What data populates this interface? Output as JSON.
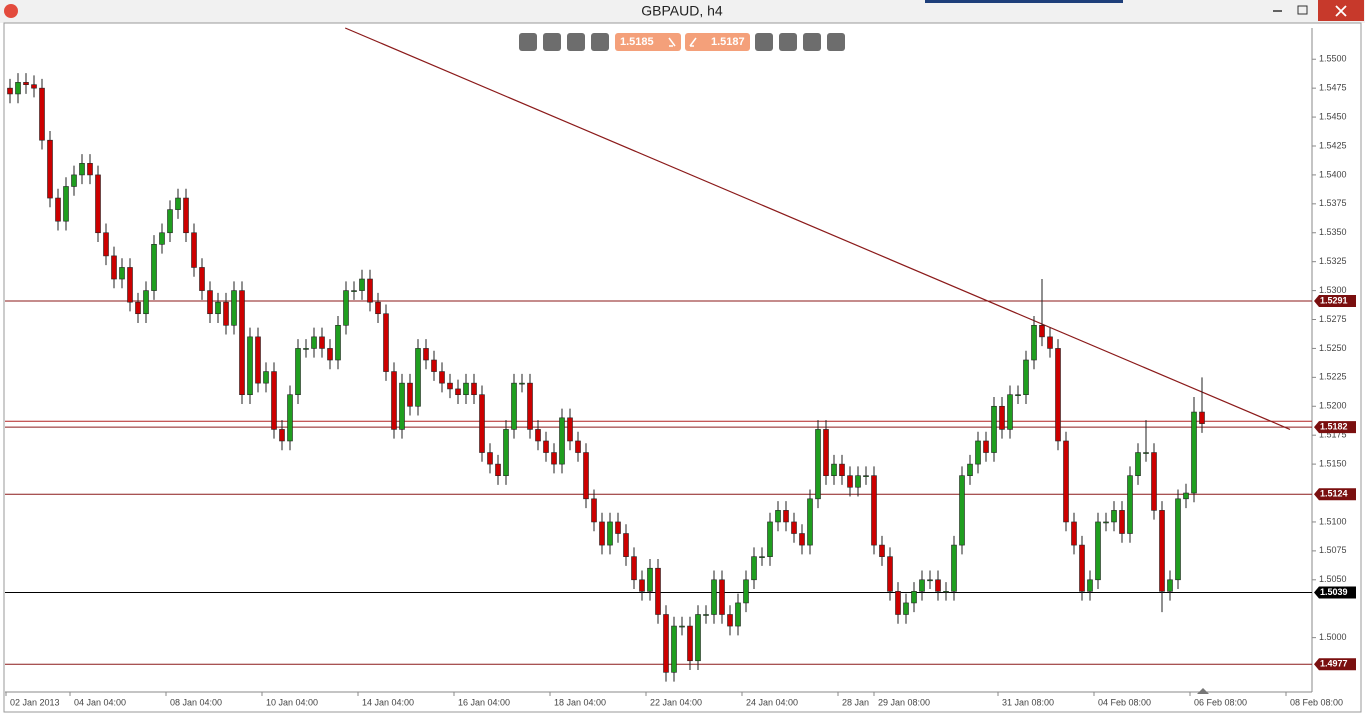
{
  "window": {
    "title": "GBPAUD, h4"
  },
  "toolbar": {
    "bid": 1.5185,
    "ask": 1.5187
  },
  "chart_data": {
    "type": "candlestick",
    "up_color": "#1f9e1f",
    "down_color": "#cc0000",
    "xlim": [
      -0.625,
      162.75
    ],
    "ylim": [
      1.4953,
      1.5527
    ],
    "yticks": [
      {
        "value": 1.55,
        "label": "1.5500"
      },
      {
        "value": 1.5475,
        "label": "1.5475"
      },
      {
        "value": 1.545,
        "label": "1.5450"
      },
      {
        "value": 1.5425,
        "label": "1.5425"
      },
      {
        "value": 1.54,
        "label": "1.5400"
      },
      {
        "value": 1.5375,
        "label": "1.5375"
      },
      {
        "value": 1.535,
        "label": "1.5350"
      },
      {
        "value": 1.5325,
        "label": "1.5325"
      },
      {
        "value": 1.53,
        "label": "1.5300"
      },
      {
        "value": 1.5275,
        "label": "1.5275"
      },
      {
        "value": 1.525,
        "label": "1.5250"
      },
      {
        "value": 1.5225,
        "label": "1.5225"
      },
      {
        "value": 1.52,
        "label": "1.5200"
      },
      {
        "value": 1.5175,
        "label": "1.5175"
      },
      {
        "value": 1.515,
        "label": "1.5150"
      },
      {
        "value": 1.51,
        "label": "1.5100"
      },
      {
        "value": 1.5075,
        "label": "1.5075"
      },
      {
        "value": 1.505,
        "label": "1.5050"
      },
      {
        "value": 1.5,
        "label": "1.5000"
      }
    ],
    "xticks": [
      {
        "value": 0,
        "label": "02 Jan 2013"
      },
      {
        "value": 8,
        "label": "04 Jan 04:00"
      },
      {
        "value": 20,
        "label": "08 Jan 04:00"
      },
      {
        "value": 32,
        "label": "10 Jan 04:00"
      },
      {
        "value": 44,
        "label": "14 Jan 04:00"
      },
      {
        "value": 56,
        "label": "16 Jan 04:00"
      },
      {
        "value": 68,
        "label": "18 Jan 04:00"
      },
      {
        "value": 80,
        "label": "22 Jan 04:00"
      },
      {
        "value": 92,
        "label": "24 Jan 04:00"
      },
      {
        "value": 104,
        "label": "28 Jan"
      },
      {
        "value": 108.5,
        "label": "29 Jan 08:00"
      },
      {
        "value": 124,
        "label": "31 Jan 08:00"
      },
      {
        "value": 136,
        "label": "04 Feb 08:00"
      },
      {
        "value": 148,
        "label": "06 Feb 08:00"
      },
      {
        "value": 160,
        "label": "08 Feb 08:00"
      }
    ],
    "levels": [
      {
        "value": 1.5291,
        "color": "#8b1a1a",
        "show_label": true
      },
      {
        "value": 1.5187,
        "color": "#b22222",
        "show_label": false
      },
      {
        "value": 1.5182,
        "color": "#8b1a1a",
        "show_label": true
      },
      {
        "value": 1.5124,
        "color": "#8b1a1a",
        "show_label": true
      },
      {
        "value": 1.5039,
        "color": "#000000",
        "show_label": true
      },
      {
        "value": 1.4977,
        "color": "#8b1a1a",
        "show_label": true
      }
    ],
    "trendline": {
      "start": [
        41.9,
        1.5527
      ],
      "end": [
        160,
        1.518
      ],
      "color": "#8b1a1a"
    },
    "ohlc": [
      [
        1.5475,
        1.5483,
        1.5462,
        1.547
      ],
      [
        1.547,
        1.5488,
        1.5462,
        1.548
      ],
      [
        1.548,
        1.5488,
        1.547,
        1.5478
      ],
      [
        1.5478,
        1.5486,
        1.5467,
        1.5475
      ],
      [
        1.5475,
        1.5483,
        1.5422,
        1.543
      ],
      [
        1.543,
        1.5438,
        1.5372,
        1.538
      ],
      [
        1.538,
        1.5388,
        1.5352,
        1.536
      ],
      [
        1.536,
        1.5398,
        1.5352,
        1.539
      ],
      [
        1.539,
        1.5408,
        1.5382,
        1.54
      ],
      [
        1.54,
        1.5418,
        1.5392,
        1.541
      ],
      [
        1.541,
        1.5418,
        1.5392,
        1.54
      ],
      [
        1.54,
        1.5408,
        1.5342,
        1.535
      ],
      [
        1.535,
        1.5358,
        1.5322,
        1.533
      ],
      [
        1.533,
        1.5338,
        1.5302,
        1.531
      ],
      [
        1.531,
        1.5328,
        1.5302,
        1.532
      ],
      [
        1.532,
        1.5328,
        1.5282,
        1.529
      ],
      [
        1.529,
        1.5298,
        1.5272,
        1.528
      ],
      [
        1.528,
        1.5308,
        1.5272,
        1.53
      ],
      [
        1.53,
        1.5348,
        1.5292,
        1.534
      ],
      [
        1.534,
        1.5358,
        1.5332,
        1.535
      ],
      [
        1.535,
        1.5378,
        1.5342,
        1.537
      ],
      [
        1.537,
        1.5388,
        1.5362,
        1.538
      ],
      [
        1.538,
        1.5388,
        1.5342,
        1.535
      ],
      [
        1.535,
        1.5358,
        1.5312,
        1.532
      ],
      [
        1.532,
        1.5328,
        1.5292,
        1.53
      ],
      [
        1.53,
        1.5308,
        1.5272,
        1.528
      ],
      [
        1.528,
        1.5298,
        1.5272,
        1.529
      ],
      [
        1.529,
        1.5298,
        1.5262,
        1.527
      ],
      [
        1.527,
        1.5308,
        1.5262,
        1.53
      ],
      [
        1.53,
        1.5308,
        1.5202,
        1.521
      ],
      [
        1.521,
        1.5268,
        1.5202,
        1.526
      ],
      [
        1.526,
        1.5268,
        1.5212,
        1.522
      ],
      [
        1.522,
        1.5238,
        1.5212,
        1.523
      ],
      [
        1.523,
        1.5238,
        1.5172,
        1.518
      ],
      [
        1.518,
        1.5188,
        1.5162,
        1.517
      ],
      [
        1.517,
        1.5218,
        1.5162,
        1.521
      ],
      [
        1.521,
        1.5258,
        1.5202,
        1.525
      ],
      [
        1.525,
        1.5258,
        1.5242,
        1.525
      ],
      [
        1.525,
        1.5268,
        1.5242,
        1.526
      ],
      [
        1.526,
        1.5268,
        1.5242,
        1.525
      ],
      [
        1.525,
        1.5258,
        1.5232,
        1.524
      ],
      [
        1.524,
        1.5278,
        1.5232,
        1.527
      ],
      [
        1.527,
        1.5308,
        1.5262,
        1.53
      ],
      [
        1.53,
        1.5308,
        1.5292,
        1.53
      ],
      [
        1.53,
        1.5318,
        1.5292,
        1.531
      ],
      [
        1.531,
        1.5318,
        1.5282,
        1.529
      ],
      [
        1.529,
        1.5298,
        1.5272,
        1.528
      ],
      [
        1.528,
        1.5288,
        1.5222,
        1.523
      ],
      [
        1.523,
        1.5238,
        1.5172,
        1.518
      ],
      [
        1.518,
        1.5228,
        1.5172,
        1.522
      ],
      [
        1.522,
        1.5228,
        1.5192,
        1.52
      ],
      [
        1.52,
        1.5258,
        1.5192,
        1.525
      ],
      [
        1.525,
        1.5258,
        1.5232,
        1.524
      ],
      [
        1.524,
        1.5248,
        1.5222,
        1.523
      ],
      [
        1.523,
        1.5238,
        1.5212,
        1.522
      ],
      [
        1.522,
        1.5228,
        1.5207,
        1.5215
      ],
      [
        1.5215,
        1.5223,
        1.5202,
        1.521
      ],
      [
        1.521,
        1.5228,
        1.5202,
        1.522
      ],
      [
        1.522,
        1.5228,
        1.5202,
        1.521
      ],
      [
        1.521,
        1.5218,
        1.5152,
        1.516
      ],
      [
        1.516,
        1.5168,
        1.5142,
        1.515
      ],
      [
        1.515,
        1.5158,
        1.5132,
        1.514
      ],
      [
        1.514,
        1.5188,
        1.5132,
        1.518
      ],
      [
        1.518,
        1.5228,
        1.5172,
        1.522
      ],
      [
        1.522,
        1.5228,
        1.5212,
        1.522
      ],
      [
        1.522,
        1.5228,
        1.5172,
        1.518
      ],
      [
        1.518,
        1.5188,
        1.5162,
        1.517
      ],
      [
        1.517,
        1.5178,
        1.5152,
        1.516
      ],
      [
        1.516,
        1.5168,
        1.5142,
        1.515
      ],
      [
        1.515,
        1.5198,
        1.5142,
        1.519
      ],
      [
        1.519,
        1.5198,
        1.5162,
        1.517
      ],
      [
        1.517,
        1.5178,
        1.5152,
        1.516
      ],
      [
        1.516,
        1.5168,
        1.5112,
        1.512
      ],
      [
        1.512,
        1.5128,
        1.5092,
        1.51
      ],
      [
        1.51,
        1.5108,
        1.5072,
        1.508
      ],
      [
        1.508,
        1.5108,
        1.5072,
        1.51
      ],
      [
        1.51,
        1.5108,
        1.5082,
        1.509
      ],
      [
        1.509,
        1.5098,
        1.5062,
        1.507
      ],
      [
        1.507,
        1.5078,
        1.5042,
        1.505
      ],
      [
        1.505,
        1.5058,
        1.5032,
        1.504
      ],
      [
        1.504,
        1.5068,
        1.5032,
        1.506
      ],
      [
        1.506,
        1.5068,
        1.5012,
        1.502
      ],
      [
        1.502,
        1.5028,
        1.4962,
        1.497
      ],
      [
        1.497,
        1.5018,
        1.4962,
        1.501
      ],
      [
        1.501,
        1.5018,
        1.5002,
        1.501
      ],
      [
        1.501,
        1.5018,
        1.4972,
        1.498
      ],
      [
        1.498,
        1.5028,
        1.4972,
        1.502
      ],
      [
        1.502,
        1.5028,
        1.5012,
        1.502
      ],
      [
        1.502,
        1.5058,
        1.5012,
        1.505
      ],
      [
        1.505,
        1.5058,
        1.5012,
        1.502
      ],
      [
        1.502,
        1.5028,
        1.5002,
        1.501
      ],
      [
        1.501,
        1.5038,
        1.5002,
        1.503
      ],
      [
        1.503,
        1.5058,
        1.5022,
        1.505
      ],
      [
        1.505,
        1.5078,
        1.5042,
        1.507
      ],
      [
        1.507,
        1.5078,
        1.5062,
        1.507
      ],
      [
        1.507,
        1.5108,
        1.5062,
        1.51
      ],
      [
        1.51,
        1.5118,
        1.5092,
        1.511
      ],
      [
        1.511,
        1.5118,
        1.5092,
        1.51
      ],
      [
        1.51,
        1.5108,
        1.5082,
        1.509
      ],
      [
        1.509,
        1.5098,
        1.5072,
        1.508
      ],
      [
        1.508,
        1.5128,
        1.5072,
        1.512
      ],
      [
        1.512,
        1.5188,
        1.5112,
        1.518
      ],
      [
        1.518,
        1.5188,
        1.5132,
        1.514
      ],
      [
        1.514,
        1.5158,
        1.5132,
        1.515
      ],
      [
        1.515,
        1.5158,
        1.5132,
        1.514
      ],
      [
        1.514,
        1.5148,
        1.5122,
        1.513
      ],
      [
        1.513,
        1.5148,
        1.5122,
        1.514
      ],
      [
        1.514,
        1.5148,
        1.5132,
        1.514
      ],
      [
        1.514,
        1.5148,
        1.5072,
        1.508
      ],
      [
        1.508,
        1.5088,
        1.5062,
        1.507
      ],
      [
        1.507,
        1.5078,
        1.5032,
        1.504
      ],
      [
        1.504,
        1.5048,
        1.5012,
        1.502
      ],
      [
        1.502,
        1.5038,
        1.5012,
        1.503
      ],
      [
        1.503,
        1.5048,
        1.5022,
        1.504
      ],
      [
        1.504,
        1.5058,
        1.5032,
        1.505
      ],
      [
        1.505,
        1.5058,
        1.5042,
        1.505
      ],
      [
        1.505,
        1.5058,
        1.5032,
        1.504
      ],
      [
        1.504,
        1.5048,
        1.5032,
        1.504
      ],
      [
        1.504,
        1.5088,
        1.5032,
        1.508
      ],
      [
        1.508,
        1.5148,
        1.5072,
        1.514
      ],
      [
        1.514,
        1.5158,
        1.5132,
        1.515
      ],
      [
        1.515,
        1.5178,
        1.5142,
        1.517
      ],
      [
        1.517,
        1.5178,
        1.5152,
        1.516
      ],
      [
        1.516,
        1.5208,
        1.5152,
        1.52
      ],
      [
        1.52,
        1.5208,
        1.5172,
        1.518
      ],
      [
        1.518,
        1.5218,
        1.5172,
        1.521
      ],
      [
        1.521,
        1.5218,
        1.5202,
        1.521
      ],
      [
        1.521,
        1.5248,
        1.5202,
        1.524
      ],
      [
        1.524,
        1.5278,
        1.5232,
        1.527
      ],
      [
        1.527,
        1.531,
        1.5252,
        1.526
      ],
      [
        1.526,
        1.5268,
        1.5242,
        1.525
      ],
      [
        1.525,
        1.5258,
        1.5162,
        1.517
      ],
      [
        1.517,
        1.5178,
        1.5092,
        1.51
      ],
      [
        1.51,
        1.5108,
        1.5072,
        1.508
      ],
      [
        1.508,
        1.5088,
        1.5032,
        1.504
      ],
      [
        1.504,
        1.5058,
        1.5032,
        1.505
      ],
      [
        1.505,
        1.5108,
        1.5042,
        1.51
      ],
      [
        1.51,
        1.5108,
        1.5092,
        1.51
      ],
      [
        1.51,
        1.5118,
        1.5092,
        1.511
      ],
      [
        1.511,
        1.5118,
        1.5082,
        1.509
      ],
      [
        1.509,
        1.5148,
        1.5082,
        1.514
      ],
      [
        1.514,
        1.5168,
        1.5132,
        1.516
      ],
      [
        1.516,
        1.5188,
        1.5152,
        1.516
      ],
      [
        1.516,
        1.5168,
        1.5102,
        1.511
      ],
      [
        1.511,
        1.5118,
        1.5022,
        1.504
      ],
      [
        1.504,
        1.5058,
        1.5032,
        1.505
      ],
      [
        1.505,
        1.5128,
        1.5042,
        1.512
      ],
      [
        1.512,
        1.5133,
        1.5112,
        1.5125
      ],
      [
        1.5125,
        1.5208,
        1.5117,
        1.5195
      ],
      [
        1.5195,
        1.5225,
        1.5177,
        1.5185
      ]
    ]
  }
}
